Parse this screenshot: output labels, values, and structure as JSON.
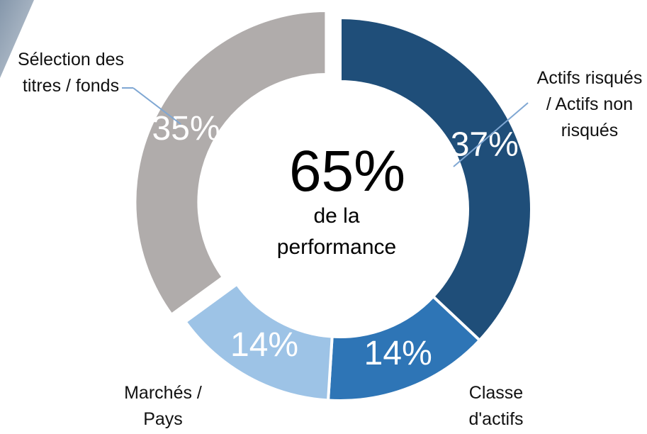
{
  "chart_data": {
    "type": "donut",
    "categories": [
      "Actifs risqués / Actifs non risqués",
      "Classe d'actifs",
      "Marchés / Pays",
      "Sélection des titres / fonds"
    ],
    "values": [
      37,
      14,
      14,
      35
    ],
    "value_labels": [
      "37%",
      "14%",
      "14%",
      "35%"
    ],
    "colors": [
      "#1f4e79",
      "#2e75b6",
      "#9dc3e6",
      "#b0acab"
    ],
    "exploded": [
      false,
      false,
      false,
      true
    ],
    "center_value": "65%",
    "center_text": "de la performance"
  }
}
